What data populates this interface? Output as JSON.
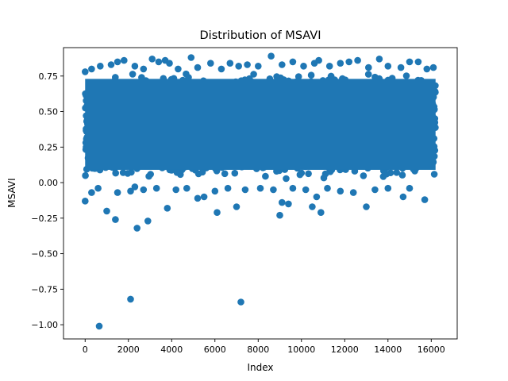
{
  "chart_data": {
    "type": "scatter",
    "title": "Distribution of MSAVI",
    "xlabel": "Index",
    "ylabel": "MSAVI",
    "xlim": [
      -1000,
      17200
    ],
    "ylim": [
      -1.1,
      0.95
    ],
    "xticks": [
      0,
      2000,
      4000,
      6000,
      8000,
      10000,
      12000,
      14000,
      16000
    ],
    "xtick_labels": [
      "0",
      "2000",
      "4000",
      "6000",
      "8000",
      "10000",
      "12000",
      "14000",
      "16000"
    ],
    "yticks": [
      -1.0,
      -0.75,
      -0.5,
      -0.25,
      0.0,
      0.25,
      0.5,
      0.75
    ],
    "ytick_labels": [
      "−1.00",
      "−0.75",
      "−0.50",
      "−0.25",
      "0.00",
      "0.25",
      "0.50",
      "0.75"
    ],
    "grid": false,
    "legend": "none",
    "marker": "circle",
    "color": "#1f77b4",
    "n_points": 16200,
    "dense_band": {
      "x_range": [
        0,
        16200
      ],
      "y_range": [
        0.02,
        0.78
      ]
    },
    "points": [
      [
        0,
        0.78
      ],
      [
        300,
        0.8
      ],
      [
        700,
        0.82
      ],
      [
        1200,
        0.83
      ],
      [
        1500,
        0.85
      ],
      [
        1800,
        0.86
      ],
      [
        2300,
        0.82
      ],
      [
        2700,
        0.8
      ],
      [
        3100,
        0.87
      ],
      [
        3400,
        0.85
      ],
      [
        3700,
        0.86
      ],
      [
        3900,
        0.84
      ],
      [
        4300,
        0.8
      ],
      [
        4900,
        0.88
      ],
      [
        5200,
        0.81
      ],
      [
        5800,
        0.84
      ],
      [
        6300,
        0.8
      ],
      [
        6700,
        0.84
      ],
      [
        7100,
        0.82
      ],
      [
        7500,
        0.83
      ],
      [
        8000,
        0.82
      ],
      [
        8600,
        0.89
      ],
      [
        9100,
        0.83
      ],
      [
        9600,
        0.85
      ],
      [
        10100,
        0.82
      ],
      [
        10600,
        0.84
      ],
      [
        10800,
        0.86
      ],
      [
        11300,
        0.82
      ],
      [
        11800,
        0.84
      ],
      [
        12200,
        0.85
      ],
      [
        12600,
        0.86
      ],
      [
        13100,
        0.81
      ],
      [
        13600,
        0.87
      ],
      [
        14000,
        0.82
      ],
      [
        14600,
        0.81
      ],
      [
        15000,
        0.85
      ],
      [
        15400,
        0.85
      ],
      [
        15800,
        0.8
      ],
      [
        16100,
        0.81
      ],
      [
        0,
        -0.13
      ],
      [
        300,
        -0.07
      ],
      [
        600,
        -0.04
      ],
      [
        1000,
        -0.2
      ],
      [
        1500,
        -0.07
      ],
      [
        1400,
        -0.26
      ],
      [
        2100,
        -0.06
      ],
      [
        2300,
        -0.03
      ],
      [
        2700,
        -0.05
      ],
      [
        2900,
        -0.27
      ],
      [
        3300,
        -0.04
      ],
      [
        3800,
        -0.18
      ],
      [
        4200,
        -0.05
      ],
      [
        4700,
        -0.04
      ],
      [
        5200,
        -0.11
      ],
      [
        5500,
        -0.1
      ],
      [
        6000,
        -0.06
      ],
      [
        6100,
        -0.21
      ],
      [
        6600,
        -0.04
      ],
      [
        7000,
        -0.17
      ],
      [
        7400,
        -0.05
      ],
      [
        8100,
        -0.04
      ],
      [
        8700,
        -0.05
      ],
      [
        9000,
        -0.23
      ],
      [
        9100,
        -0.14
      ],
      [
        9400,
        -0.15
      ],
      [
        9600,
        -0.04
      ],
      [
        10200,
        -0.05
      ],
      [
        10500,
        -0.17
      ],
      [
        10700,
        -0.1
      ],
      [
        10900,
        -0.21
      ],
      [
        11200,
        -0.04
      ],
      [
        11800,
        -0.06
      ],
      [
        12400,
        -0.07
      ],
      [
        13000,
        -0.17
      ],
      [
        13400,
        -0.05
      ],
      [
        14000,
        -0.04
      ],
      [
        14700,
        -0.1
      ],
      [
        15000,
        -0.04
      ],
      [
        15700,
        -0.12
      ],
      [
        2400,
        -0.32
      ],
      [
        2100,
        -0.82
      ],
      [
        7200,
        -0.84
      ],
      [
        650,
        -1.01
      ]
    ]
  }
}
